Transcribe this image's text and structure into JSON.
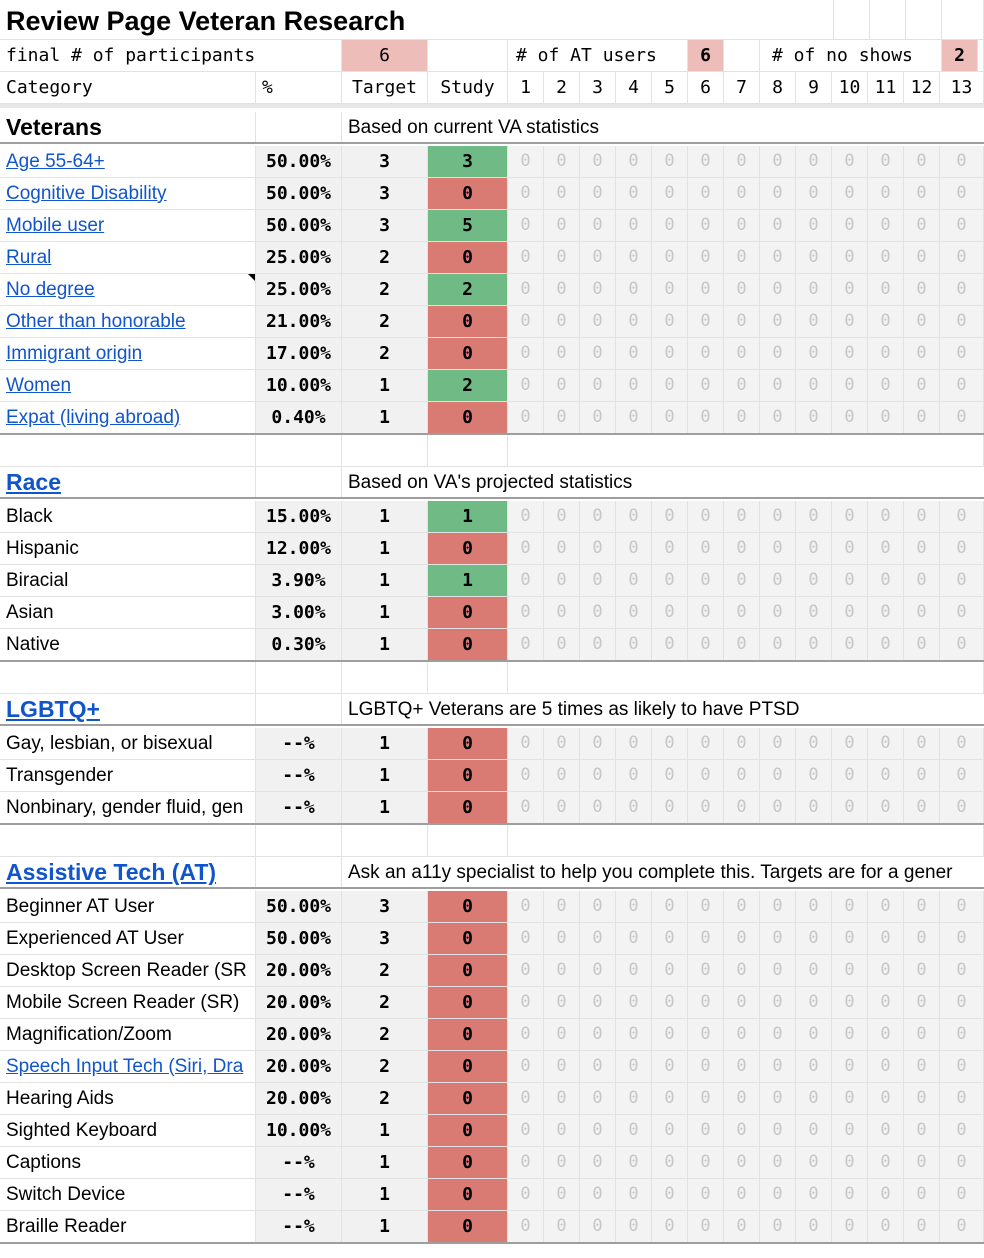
{
  "title": "Review Page Veteran Research",
  "summary": {
    "final_label": "final # of participants",
    "final_value": "6",
    "at_label": "# of AT users",
    "at_value": "6",
    "noshow_label": "# of no shows",
    "noshow_value": "2"
  },
  "header": {
    "category": "Category",
    "percent": "%",
    "target": "Target",
    "study": "Study",
    "participants": [
      "1",
      "2",
      "3",
      "4",
      "5",
      "6",
      "7",
      "8",
      "9",
      "10",
      "11",
      "12",
      "13"
    ]
  },
  "zero_value": "0",
  "colors": {
    "met": "#6fba85",
    "unmet": "#d97b72",
    "highlight": "#ecbdb9",
    "link": "#1155cc"
  },
  "sections": [
    {
      "title": "Veterans",
      "title_is_link": false,
      "note": "Based on current VA statistics",
      "rows": [
        {
          "label": "Age 55-64+",
          "link": true,
          "pct": "50.00%",
          "target": "3",
          "study": "3",
          "met": true
        },
        {
          "label": "Cognitive Disability",
          "link": true,
          "pct": "50.00%",
          "target": "3",
          "study": "0",
          "met": false
        },
        {
          "label": "Mobile user",
          "link": true,
          "pct": "50.00%",
          "target": "3",
          "study": "5",
          "met": true
        },
        {
          "label": "Rural",
          "link": true,
          "pct": "25.00%",
          "target": "2",
          "study": "0",
          "met": false
        },
        {
          "label": "No degree",
          "link": true,
          "pct": "25.00%",
          "target": "2",
          "study": "2",
          "met": true,
          "comment": true
        },
        {
          "label": "Other than honorable",
          "link": true,
          "pct": "21.00%",
          "target": "2",
          "study": "0",
          "met": false
        },
        {
          "label": "Immigrant origin",
          "link": true,
          "pct": "17.00%",
          "target": "2",
          "study": "0",
          "met": false
        },
        {
          "label": "Women",
          "link": true,
          "pct": "10.00%",
          "target": "1",
          "study": "2",
          "met": true
        },
        {
          "label": "Expat (living abroad)",
          "link": true,
          "pct": "0.40%",
          "target": "1",
          "study": "0",
          "met": false
        }
      ]
    },
    {
      "title": "Race",
      "title_is_link": true,
      "note": "Based on VA's projected statistics",
      "rows": [
        {
          "label": "Black",
          "link": false,
          "pct": "15.00%",
          "target": "1",
          "study": "1",
          "met": true
        },
        {
          "label": "Hispanic",
          "link": false,
          "pct": "12.00%",
          "target": "1",
          "study": "0",
          "met": false
        },
        {
          "label": "Biracial",
          "link": false,
          "pct": "3.90%",
          "target": "1",
          "study": "1",
          "met": true
        },
        {
          "label": "Asian",
          "link": false,
          "pct": "3.00%",
          "target": "1",
          "study": "0",
          "met": false
        },
        {
          "label": "Native",
          "link": false,
          "pct": "0.30%",
          "target": "1",
          "study": "0",
          "met": false
        }
      ]
    },
    {
      "title": "LGBTQ+",
      "title_is_link": true,
      "note": "LGBTQ+ Veterans are 5 times as likely to have PTSD",
      "rows": [
        {
          "label": "Gay, lesbian, or bisexual",
          "link": false,
          "pct": "--%",
          "target": "1",
          "study": "0",
          "met": false
        },
        {
          "label": "Transgender",
          "link": false,
          "pct": "--%",
          "target": "1",
          "study": "0",
          "met": false
        },
        {
          "label": "Nonbinary, gender fluid, gen",
          "link": false,
          "pct": "--%",
          "target": "1",
          "study": "0",
          "met": false
        }
      ]
    },
    {
      "title": "Assistive Tech (AT)",
      "title_is_link": true,
      "note": "Ask an a11y specialist to help you complete this. Targets are for a gener",
      "rows": [
        {
          "label": "Beginner AT User",
          "link": false,
          "pct": "50.00%",
          "target": "3",
          "study": "0",
          "met": false
        },
        {
          "label": "Experienced AT User",
          "link": false,
          "pct": "50.00%",
          "target": "3",
          "study": "0",
          "met": false
        },
        {
          "label": "Desktop Screen Reader (SR",
          "link": false,
          "pct": "20.00%",
          "target": "2",
          "study": "0",
          "met": false
        },
        {
          "label": "Mobile Screen Reader (SR)",
          "link": false,
          "pct": "20.00%",
          "target": "2",
          "study": "0",
          "met": false
        },
        {
          "label": "Magnification/Zoom",
          "link": false,
          "pct": "20.00%",
          "target": "2",
          "study": "0",
          "met": false
        },
        {
          "label": "Speech Input Tech (Siri, Dra",
          "link": true,
          "pct": "20.00%",
          "target": "2",
          "study": "0",
          "met": false
        },
        {
          "label": "Hearing Aids",
          "link": false,
          "pct": "20.00%",
          "target": "2",
          "study": "0",
          "met": false
        },
        {
          "label": "Sighted Keyboard",
          "link": false,
          "pct": "10.00%",
          "target": "1",
          "study": "0",
          "met": false
        },
        {
          "label": "Captions",
          "link": false,
          "pct": "--%",
          "target": "1",
          "study": "0",
          "met": false
        },
        {
          "label": "Switch Device",
          "link": false,
          "pct": "--%",
          "target": "1",
          "study": "0",
          "met": false
        },
        {
          "label": "Braille Reader",
          "link": false,
          "pct": "--%",
          "target": "1",
          "study": "0",
          "met": false
        }
      ]
    }
  ]
}
